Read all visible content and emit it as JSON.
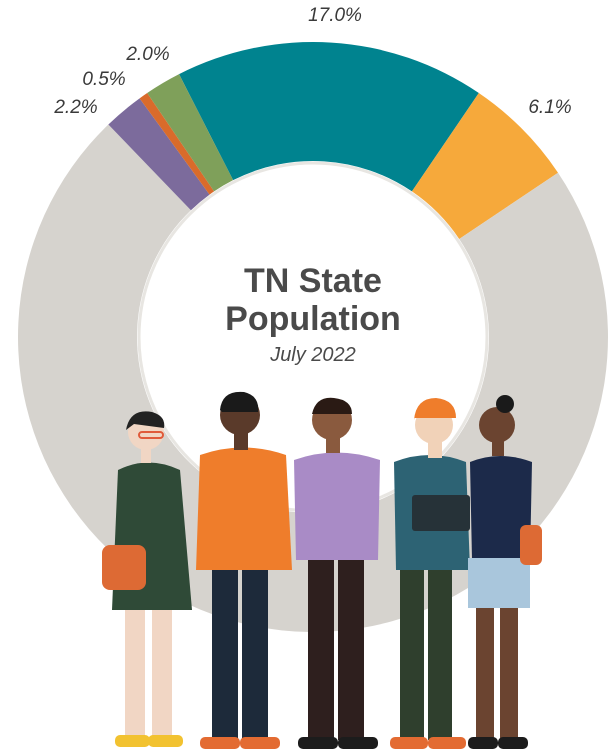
{
  "chart_data": {
    "type": "donut",
    "title": "TN State Population",
    "subtitle": "July 2022",
    "categories": [
      null,
      null,
      null,
      null,
      null,
      null
    ],
    "values": [
      17.0,
      6.1,
      72.2,
      2.2,
      0.5,
      2.0
    ],
    "value_labels": [
      "17.0%",
      "6.1%",
      null,
      "2.2%",
      "0.5%",
      "2.0%"
    ],
    "colors": [
      "#00838f",
      "#f6a93b",
      "#d6d3ce",
      "#7c6b9c",
      "#d96b2b",
      "#7fa05a"
    ]
  }
}
